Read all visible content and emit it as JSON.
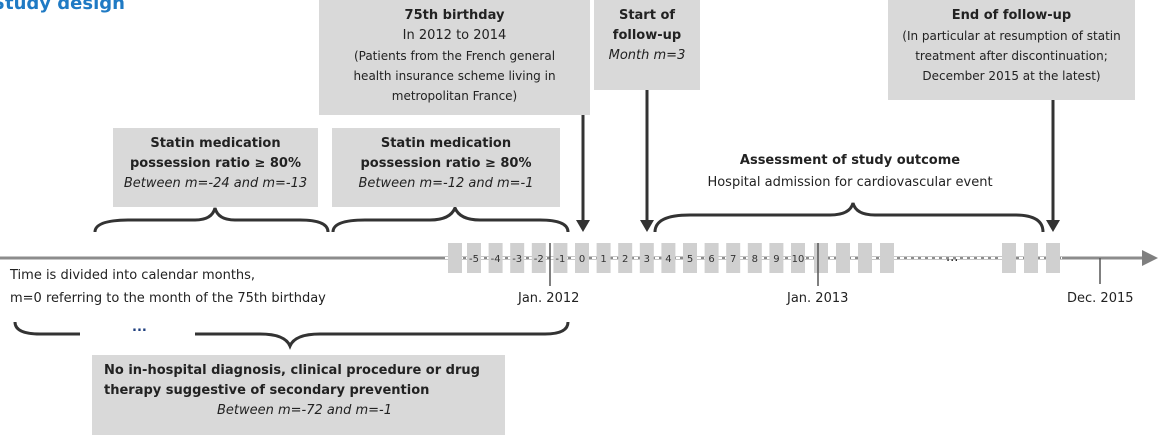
{
  "title": "Study design",
  "birthday_box": {
    "heading": "75th birthday",
    "lines": [
      "In 2012 to 2014",
      "(Patients from the French general",
      "health insurance scheme living in",
      "metropolitan France)"
    ]
  },
  "start_box": {
    "heading": [
      "Start of",
      "follow-up"
    ],
    "note": "Month m=3"
  },
  "end_box": {
    "heading": "End of follow-up",
    "lines": [
      "(In particular at resumption of statin",
      "treatment after discontinuation;",
      "December 2015 at the latest)"
    ]
  },
  "statin_boxes": [
    {
      "heading": [
        "Statin medication",
        "possession ratio ≥ 80%"
      ],
      "note": "Between m=-24 and m=-13"
    },
    {
      "heading": [
        "Statin medication",
        "possession ratio ≥ 80%"
      ],
      "note": "Between m=-12 and m=-1"
    }
  ],
  "outcome": {
    "heading": "Assessment of study outcome",
    "text": "Hospital admission for cardiovascular event"
  },
  "axis_note": [
    "Time is divided into calendar months,",
    "m=0 referring to the month of the 75th birthday"
  ],
  "months": [
    "-5",
    "-4",
    "-3",
    "-2",
    "-1",
    "0",
    "1",
    "2",
    "3",
    "4",
    "5",
    "6",
    "7",
    "8",
    "9",
    "10"
  ],
  "dates": [
    "Jan. 2012",
    "Jan. 2013",
    "Dec. 2015"
  ],
  "ellipsis_axis": "...",
  "ellipsis_brace": "...",
  "prevention_box": {
    "heading": [
      "No in-hospital diagnosis, clinical procedure or drug",
      "therapy suggestive of secondary prevention"
    ],
    "note": "Between m=-72 and m=-1"
  }
}
